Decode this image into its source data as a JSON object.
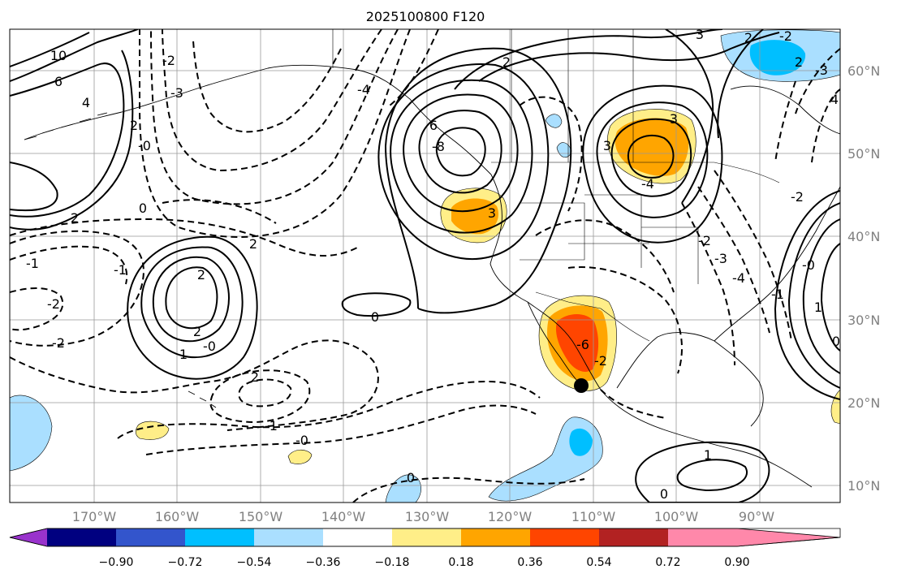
{
  "title": "2025100800 F120",
  "longitude_labels": [
    "170°W",
    "160°W",
    "150°W",
    "140°W",
    "130°W",
    "120°W",
    "110°W",
    "100°W",
    "90°W"
  ],
  "latitude_labels": [
    "60°N",
    "50°N",
    "40°N",
    "30°N",
    "20°N",
    "10°N"
  ],
  "colorbar": {
    "ticks": [
      "−0.90",
      "−0.72",
      "−0.54",
      "−0.36",
      "−0.18",
      "0.18",
      "0.36",
      "0.54",
      "0.72",
      "0.90"
    ],
    "colors": [
      "#9933cc",
      "#000080",
      "#3355cc",
      "#00bfff",
      "#aadfff",
      "#ffffff",
      "#ffee88",
      "#ffa500",
      "#ff4500",
      "#b22222",
      "#ff88aa"
    ]
  },
  "contour_labels": [
    "10",
    "6",
    "4",
    "2",
    "2",
    "0",
    "1",
    "2",
    "2",
    "3",
    "3",
    "-2",
    "-1",
    "-2",
    "-1",
    "-0",
    "0",
    "2",
    "2",
    "1",
    "0",
    "0",
    "-1",
    "-2",
    "-0",
    "-0",
    "-8",
    "6",
    "-4",
    "-3",
    "3",
    "-4",
    "4",
    "2",
    "-2",
    "2",
    "-2",
    "3",
    "-3",
    "2",
    "-0",
    "-1",
    "1",
    "0",
    "-2",
    "-3",
    "-4",
    "-6",
    "-2"
  ],
  "marker": "black-dot"
}
